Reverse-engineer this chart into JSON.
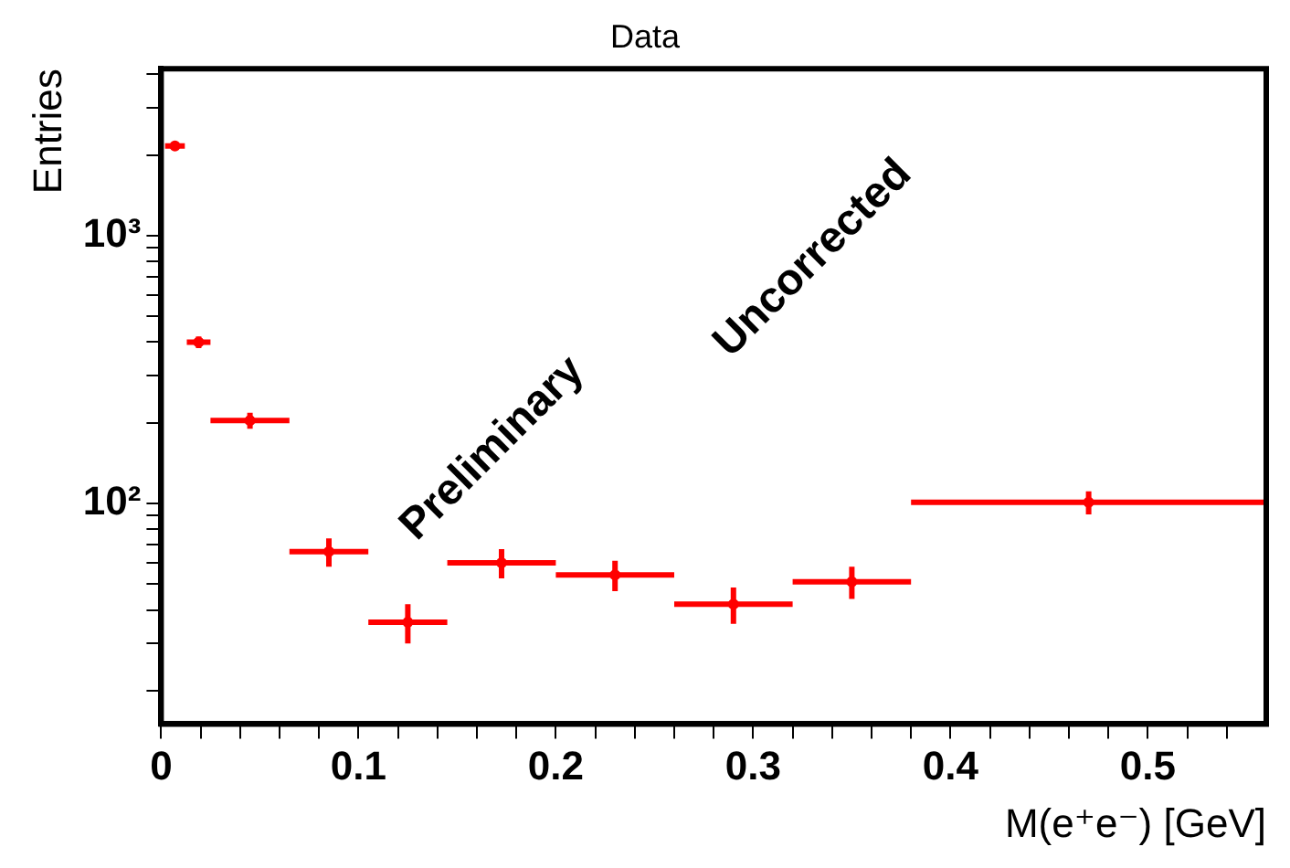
{
  "chart_data": {
    "type": "scatter",
    "title": "Data",
    "xlabel": "M(e⁺e⁻) [GeV]",
    "ylabel": "Entries",
    "annotations": [
      "Preliminary",
      "Uncorrected"
    ],
    "x": [
      0.007,
      0.019,
      0.045,
      0.085,
      0.125,
      0.1725,
      0.23,
      0.29,
      0.35,
      0.47
    ],
    "series": [
      {
        "color": "#ff0000",
        "values": [
          2160,
          400,
          204,
          66,
          36,
          60,
          54,
          42,
          51,
          101
        ],
        "errors": [
          46,
          20,
          14,
          8,
          6,
          7.5,
          7,
          6.5,
          7,
          10
        ],
        "xerrors": [
          0.005,
          0.006,
          0.02,
          0.02,
          0.02,
          0.0275,
          0.03,
          0.03,
          0.03,
          0.09
        ]
      }
    ],
    "xlim": [
      0,
      0.56
    ],
    "xticks": [
      0,
      {
        "value": 0.02,
        "label": null
      },
      {
        "value": 0.04,
        "label": null
      },
      {
        "value": 0.06,
        "label": null
      },
      {
        "value": 0.08,
        "label": null
      },
      0.1,
      {
        "value": 0.12,
        "label": null
      },
      {
        "value": 0.14,
        "label": null
      },
      {
        "value": 0.16,
        "label": null
      },
      {
        "value": 0.18,
        "label": null
      },
      0.2,
      {
        "value": 0.22,
        "label": null
      },
      {
        "value": 0.24,
        "label": null
      },
      {
        "value": 0.26,
        "label": null
      },
      {
        "value": 0.28,
        "label": null
      },
      0.3,
      {
        "value": 0.32,
        "label": null
      },
      {
        "value": 0.34,
        "label": null
      },
      {
        "value": 0.36,
        "label": null
      },
      {
        "value": 0.38,
        "label": null
      },
      0.4,
      {
        "value": 0.42,
        "label": null
      },
      {
        "value": 0.44,
        "label": null
      },
      {
        "value": 0.46,
        "label": null
      },
      {
        "value": 0.48,
        "label": null
      },
      0.5,
      {
        "value": 0.52,
        "label": null
      },
      {
        "value": 0.54,
        "label": null
      }
    ],
    "ylim": [
      15,
      4200
    ],
    "yticks": [
      {
        "value": 20,
        "label": null
      },
      {
        "value": 30,
        "label": null
      },
      {
        "value": 40,
        "label": null
      },
      {
        "value": 50,
        "label": null
      },
      {
        "value": 60,
        "label": null
      },
      {
        "value": 70,
        "label": null
      },
      {
        "value": 80,
        "label": null
      },
      {
        "value": 90,
        "label": null
      },
      {
        "value": 100,
        "label": "10²"
      },
      {
        "value": 200,
        "label": null
      },
      {
        "value": 300,
        "label": null
      },
      {
        "value": 400,
        "label": null
      },
      {
        "value": 500,
        "label": null
      },
      {
        "value": 600,
        "label": null
      },
      {
        "value": 700,
        "label": null
      },
      {
        "value": 800,
        "label": null
      },
      {
        "value": 900,
        "label": null
      },
      {
        "value": 1000,
        "label": "10³"
      },
      {
        "value": 2000,
        "label": null
      },
      {
        "value": 3000,
        "label": null
      },
      {
        "value": 4000,
        "label": null
      }
    ],
    "log": true,
    "grid": false,
    "legend": false
  }
}
